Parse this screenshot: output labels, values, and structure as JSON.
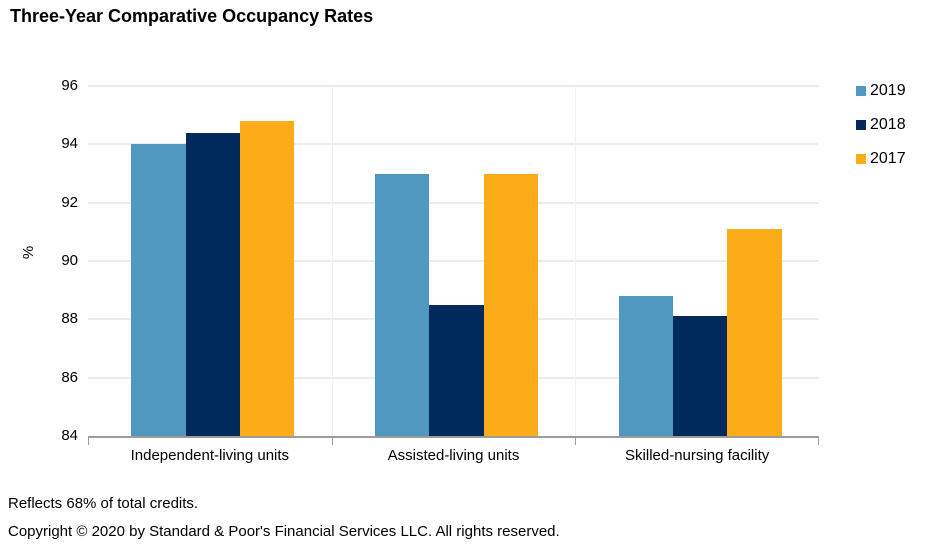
{
  "title": "Three-Year Comparative Occupancy Rates",
  "chart_data": {
    "type": "bar",
    "title": "Three-Year Comparative Occupancy Rates",
    "categories": [
      "Independent-living units",
      "Assisted-living units",
      "Skilled-nursing facility"
    ],
    "series": [
      {
        "name": "2019",
        "color": "#5198C1",
        "values": [
          94.0,
          93.0,
          88.8
        ]
      },
      {
        "name": "2018",
        "color": "#012A5C",
        "values": [
          94.4,
          88.5,
          88.1
        ]
      },
      {
        "name": "2017",
        "color": "#FDAC19",
        "values": [
          94.8,
          93.0,
          91.1
        ]
      }
    ],
    "xlabel": "",
    "ylabel": "%",
    "ylim": [
      84,
      96
    ],
    "yticks": [
      96,
      94,
      92,
      90,
      88,
      86,
      84
    ],
    "grid": true,
    "legend_position": "right",
    "gridline_color": "#ececec",
    "axis_color": "#9c9c9c"
  },
  "footnotes": {
    "line1": "Reflects 68% of total credits.",
    "line2": "Copyright © 2020 by Standard & Poor's Financial Services LLC. All rights reserved."
  }
}
